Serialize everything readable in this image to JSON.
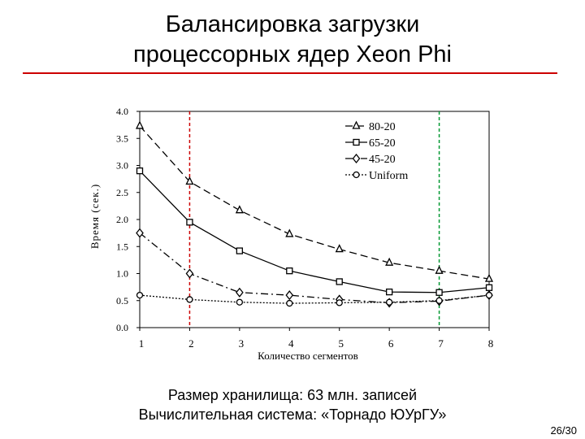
{
  "slide": {
    "title_line1": "Балансировка загрузки",
    "title_line2": "процессорных ядер Xeon Phi",
    "footer_line1": "Размер хранилища: 63 млн. записей",
    "footer_line2": "Вычислительная система: «Торнадо ЮУрГУ»",
    "page_number": "26/30",
    "accent_color": "#cc0000"
  },
  "chart_data": {
    "type": "line",
    "xlabel": "Количество сегментов",
    "ylabel": "Время (сек.)",
    "x": [
      1,
      2,
      3,
      4,
      5,
      6,
      7,
      8
    ],
    "xlim": [
      1,
      8
    ],
    "ylim": [
      0.0,
      4.0
    ],
    "yticks": [
      "0.0",
      "0.5",
      "1.0",
      "1.5",
      "2.0",
      "2.5",
      "3.0",
      "3.5",
      "4.0"
    ],
    "xticks": [
      "1",
      "2",
      "3",
      "4",
      "5",
      "6",
      "7",
      "8"
    ],
    "grid": false,
    "legend_position": "top-right",
    "series": [
      {
        "name": "80-20",
        "marker": "triangle",
        "dash": "dashed",
        "values": [
          3.73,
          2.7,
          2.17,
          1.73,
          1.45,
          1.2,
          1.05,
          0.9
        ]
      },
      {
        "name": "65-20",
        "marker": "square",
        "dash": "solid",
        "values": [
          2.9,
          1.95,
          1.42,
          1.05,
          0.85,
          0.66,
          0.65,
          0.74
        ]
      },
      {
        "name": "45-20",
        "marker": "diamond",
        "dash": "dashdot",
        "values": [
          1.75,
          1.0,
          0.65,
          0.6,
          0.52,
          0.46,
          0.49,
          0.6
        ]
      },
      {
        "name": "Uniform",
        "marker": "circle",
        "dash": "dotted",
        "values": [
          0.6,
          0.52,
          0.47,
          0.45,
          0.46,
          0.47,
          0.5,
          0.6
        ]
      }
    ],
    "reference_lines": [
      {
        "x": 2,
        "color": "#cc0000",
        "style": "dashed"
      },
      {
        "x": 7,
        "color": "#009933",
        "style": "dashed"
      }
    ]
  }
}
